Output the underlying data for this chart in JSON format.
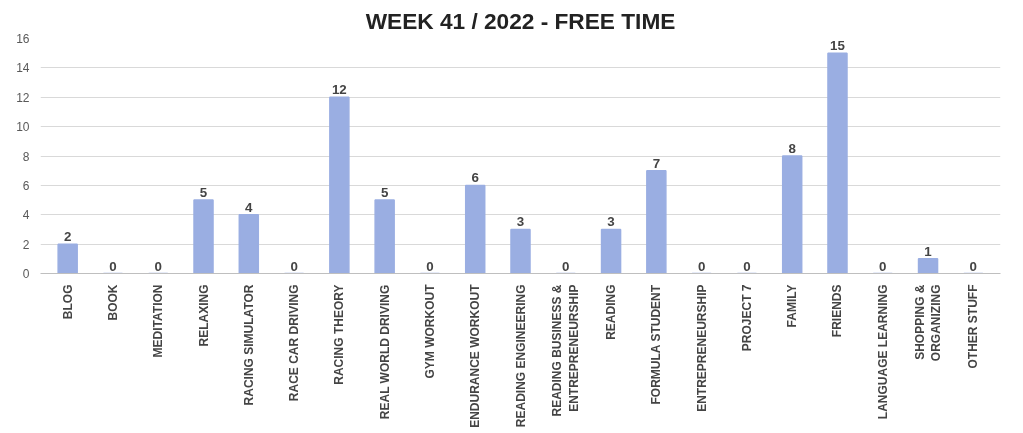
{
  "chart_data": {
    "type": "bar",
    "title": "WEEK 41 / 2022 - FREE TIME",
    "categories": [
      "BLOG",
      "BOOK",
      "MEDITATION",
      "RELAXING",
      "RACING SIMULATOR",
      "RACE CAR DRIVING",
      "RACING THEORY",
      "REAL WORLD DRIVING",
      "GYM WORKOUT",
      "ENDURANCE WORKOUT",
      "READING ENGINEERING",
      "READING BUSINESS & ENTREPRENEURSHIP",
      "READING",
      "FORMULA STUDENT",
      "ENTREPRENEURSHIP",
      "PROJECT 7",
      "FAMILY",
      "FRIENDS",
      "LANGUAGE LEARNING",
      "SHOPPING & ORGANIZING",
      "OTHER STUFF"
    ],
    "values": [
      2,
      0,
      0,
      5,
      4,
      0,
      12,
      5,
      0,
      6,
      3,
      0,
      3,
      7,
      0,
      0,
      8,
      15,
      0,
      1,
      0
    ],
    "color": "#9aaee2",
    "ylim": [
      0,
      16
    ],
    "yticks": [
      0,
      2,
      4,
      6,
      8,
      10,
      12,
      14,
      16
    ],
    "grid": "y",
    "data_labels": true
  }
}
